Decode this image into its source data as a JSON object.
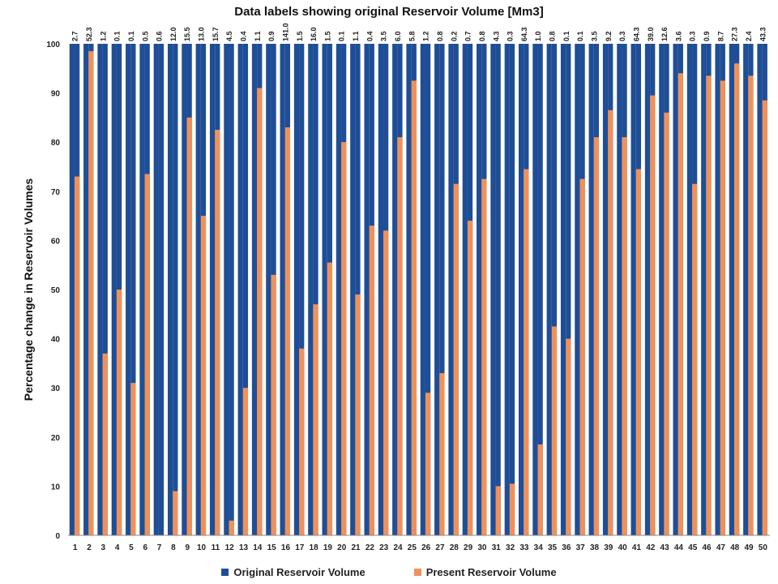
{
  "chart_data": {
    "type": "bar",
    "title": "Data labels showing original Reservoir Volume [Mm3]",
    "ylabel": "Percentage change in Reservoir  Volumes",
    "xlabel": "",
    "ylim": [
      0,
      100
    ],
    "yticks": [
      0,
      10,
      20,
      30,
      40,
      50,
      60,
      70,
      80,
      90,
      100
    ],
    "grid": false,
    "legend_position": "bottom",
    "categories": [
      "1",
      "2",
      "3",
      "4",
      "5",
      "6",
      "7",
      "8",
      "9",
      "10",
      "11",
      "12",
      "13",
      "14",
      "15",
      "16",
      "17",
      "18",
      "19",
      "20",
      "21",
      "22",
      "23",
      "24",
      "25",
      "26",
      "27",
      "28",
      "29",
      "30",
      "31",
      "32",
      "33",
      "34",
      "35",
      "36",
      "37",
      "38",
      "39",
      "40",
      "41",
      "42",
      "43",
      "44",
      "45",
      "46",
      "47",
      "48",
      "49",
      "50"
    ],
    "data_labels": [
      "2.7",
      "52.3",
      "1.2",
      "0.1",
      "0.1",
      "0.5",
      "0.6",
      "12.0",
      "15.5",
      "13.0",
      "15.7",
      "4.5",
      "0.4",
      "1.1",
      "0.9",
      "141.0",
      "1.5",
      "16.0",
      "1.5",
      "0.1",
      "1.1",
      "0.4",
      "3.5",
      "6.0",
      "5.8",
      "1.2",
      "0.8",
      "0.2",
      "0.7",
      "0.8",
      "4.3",
      "0.3",
      "64.3",
      "1.0",
      "0.8",
      "0.1",
      "0.1",
      "3.5",
      "9.2",
      "0.3",
      "64.3",
      "39.0",
      "12.6",
      "3.6",
      "0.3",
      "0.9",
      "8.7",
      "27.3",
      "2.4",
      "43.3"
    ],
    "series": [
      {
        "name": "Original Reservoir Volume",
        "color": "#1F4E96",
        "values": [
          100,
          100,
          100,
          100,
          100,
          100,
          100,
          100,
          100,
          100,
          100,
          100,
          100,
          100,
          100,
          100,
          100,
          100,
          100,
          100,
          100,
          100,
          100,
          100,
          100,
          100,
          100,
          100,
          100,
          100,
          100,
          100,
          100,
          100,
          100,
          100,
          100,
          100,
          100,
          100,
          100,
          100,
          100,
          100,
          100,
          100,
          100,
          100,
          100,
          100
        ]
      },
      {
        "name": "Present Reservoir Volume",
        "color": "#F0915A",
        "values": [
          73,
          98.5,
          37,
          50,
          31,
          73.5,
          0,
          9,
          85,
          65,
          82.5,
          3,
          30,
          91,
          53,
          83,
          38,
          47,
          55.5,
          80,
          49,
          63,
          62,
          81,
          92.5,
          29,
          33,
          71.5,
          64,
          72.5,
          10,
          10.5,
          74.5,
          18.5,
          42.5,
          40,
          72.5,
          81,
          86.5,
          81,
          74.5,
          89.5,
          86,
          94,
          71.5,
          93.5,
          92.5,
          96,
          93.5,
          88.5
        ]
      }
    ]
  }
}
